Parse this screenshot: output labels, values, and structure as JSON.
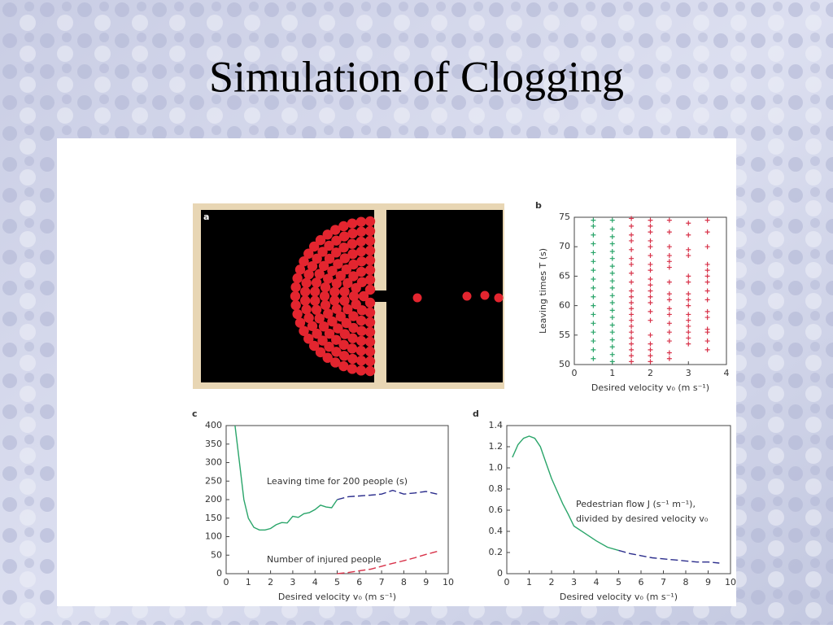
{
  "title": "Simulation of Clogging",
  "panel_a": {
    "label": "a"
  },
  "chart_data": [
    {
      "type": "scatter",
      "label": "b",
      "xlabel": "Desired velocity v₀ (m s⁻¹)",
      "ylabel": "Leaving times T (s)",
      "xlim": [
        0,
        4
      ],
      "xticks": [
        0,
        1,
        2,
        3,
        4
      ],
      "ylim": [
        50,
        75
      ],
      "yticks": [
        50,
        55,
        60,
        65,
        70,
        75
      ],
      "series": [
        {
          "color": "#2aa56a",
          "x": [
            0.5,
            0.5,
            0.5,
            0.5,
            0.5,
            0.5,
            0.5,
            0.5,
            0.5,
            0.5,
            0.5,
            0.5,
            0.5,
            0.5,
            0.5,
            0.5,
            0.5,
            1,
            1,
            1,
            1,
            1,
            1,
            1,
            1,
            1,
            1,
            1,
            1,
            1,
            1,
            1,
            1,
            1,
            1,
            1,
            1
          ],
          "y": [
            51,
            52.5,
            54,
            55.5,
            57,
            58.5,
            60,
            61.5,
            63,
            64.5,
            66,
            67.5,
            69,
            70.5,
            72,
            73.5,
            74.5,
            50.5,
            51.7,
            53,
            54.2,
            55.5,
            56.7,
            58,
            59.2,
            60.5,
            61.7,
            63,
            64.2,
            65.5,
            66.7,
            68,
            69.2,
            70.5,
            71.7,
            73,
            74.5
          ]
        },
        {
          "color": "#d8334a",
          "x": [
            1.5,
            1.5,
            1.5,
            1.5,
            1.5,
            1.5,
            1.5,
            1.5,
            1.5,
            1.5,
            1.5,
            1.5,
            1.5,
            1.5,
            1.5,
            1.5,
            1.5,
            1.5,
            1.5,
            1.5,
            1.5,
            1.5,
            2,
            2,
            2,
            2,
            2,
            2,
            2,
            2,
            2,
            2,
            2,
            2,
            2,
            2,
            2,
            2,
            2,
            2,
            2,
            2,
            2.5,
            2.5,
            2.5,
            2.5,
            2.5,
            2.5,
            2.5,
            2.5,
            2.5,
            2.5,
            2.5,
            2.5,
            2.5,
            2.5,
            2.5,
            2.5,
            3,
            3,
            3,
            3,
            3,
            3,
            3,
            3,
            3,
            3,
            3,
            3,
            3,
            3,
            3,
            3.5,
            3.5,
            3.5,
            3.5,
            3.5,
            3.5,
            3.5,
            3.5,
            3.5,
            3.5,
            3.5,
            3.5,
            3.5,
            3.5,
            3.5
          ],
          "y": [
            50.5,
            51.5,
            52.5,
            53.5,
            54.5,
            55.5,
            56.5,
            57.5,
            58.5,
            59.5,
            60.5,
            61.5,
            62.5,
            64,
            65.5,
            67,
            68,
            69.5,
            71,
            72,
            73.5,
            74.8,
            50.5,
            51.5,
            52.5,
            53.5,
            55,
            57.5,
            59,
            60.5,
            61.5,
            62.5,
            63.5,
            64.5,
            66,
            67,
            68.5,
            70,
            71,
            72.5,
            73.5,
            74.5,
            51,
            52,
            54,
            55.5,
            57,
            58.5,
            59.5,
            61,
            62,
            64,
            66.5,
            67.5,
            68.5,
            70,
            72.5,
            74.5,
            53.5,
            54.5,
            55.5,
            56.5,
            57.5,
            58.5,
            60,
            61,
            62,
            64,
            65,
            68.5,
            69.5,
            72,
            74,
            52.5,
            54,
            55.5,
            56,
            58,
            59,
            61,
            62.5,
            64,
            65,
            66,
            67,
            70,
            72.5,
            74.5
          ]
        }
      ]
    },
    {
      "type": "line",
      "label": "c",
      "xlabel": "Desired velocity v₀ (m s⁻¹)",
      "annotations": [
        "Leaving time for 200 people (s)",
        "Number of injured people"
      ],
      "xlim": [
        0,
        10
      ],
      "xticks": [
        0,
        1,
        2,
        3,
        4,
        5,
        6,
        7,
        8,
        9,
        10
      ],
      "ylim": [
        0,
        400
      ],
      "yticks": [
        0,
        50,
        100,
        150,
        200,
        250,
        300,
        350,
        400
      ],
      "x": [
        0.4,
        0.6,
        0.8,
        1,
        1.25,
        1.5,
        1.75,
        2,
        2.25,
        2.5,
        2.75,
        3,
        3.25,
        3.5,
        3.75,
        4,
        4.25,
        4.5,
        4.75,
        5,
        5.5,
        6,
        6.5,
        7,
        7.5,
        8,
        8.5,
        9,
        9.5
      ],
      "series": [
        {
          "color": "#2aa56a",
          "dash": false,
          "values": [
            400,
            300,
            200,
            150,
            125,
            118,
            118,
            122,
            132,
            138,
            137,
            155,
            152,
            162,
            165,
            173,
            185,
            180,
            178,
            200,
            null,
            null,
            null,
            null,
            null,
            null,
            null,
            null,
            null
          ]
        },
        {
          "color": "#2b2d8c",
          "dash": true,
          "values": [
            null,
            null,
            null,
            null,
            null,
            null,
            null,
            null,
            null,
            null,
            null,
            null,
            null,
            null,
            null,
            null,
            null,
            null,
            null,
            200,
            208,
            210,
            212,
            215,
            225,
            215,
            218,
            222,
            215
          ]
        },
        {
          "color": "#d8334a",
          "dash": true,
          "values": [
            null,
            null,
            null,
            null,
            null,
            null,
            null,
            null,
            null,
            null,
            null,
            null,
            null,
            null,
            null,
            null,
            null,
            null,
            null,
            0,
            3,
            8,
            12,
            20,
            28,
            35,
            43,
            52,
            60
          ]
        }
      ]
    },
    {
      "type": "line",
      "label": "d",
      "xlabel": "Desired velocity v₀ (m s⁻¹)",
      "annotations": [
        "Pedestrian flow J (s⁻¹ m⁻¹),",
        "divided by desired velocity v₀"
      ],
      "xlim": [
        0,
        10
      ],
      "xticks": [
        0,
        1,
        2,
        3,
        4,
        5,
        6,
        7,
        8,
        9,
        10
      ],
      "ylim": [
        0,
        1.4
      ],
      "yticks": [
        0,
        0.2,
        0.4,
        0.6,
        0.8,
        {
          "value": 1,
          "label": "1.0"
        },
        1.2,
        1.4
      ],
      "x": [
        0.25,
        0.5,
        0.75,
        1,
        1.25,
        1.5,
        1.75,
        2,
        2.25,
        2.5,
        2.75,
        3,
        3.5,
        4,
        4.5,
        5,
        5.5,
        6,
        6.5,
        7,
        7.5,
        8,
        8.5,
        9,
        9.5
      ],
      "series": [
        {
          "color": "#2aa56a",
          "dash": false,
          "values": [
            1.1,
            1.22,
            1.28,
            1.3,
            1.28,
            1.2,
            1.05,
            0.9,
            0.78,
            0.66,
            0.56,
            0.45,
            0.38,
            0.31,
            0.25,
            0.22,
            null,
            null,
            null,
            null,
            null,
            null,
            null,
            null,
            null
          ]
        },
        {
          "color": "#2b2d8c",
          "dash": true,
          "values": [
            null,
            null,
            null,
            null,
            null,
            null,
            null,
            null,
            null,
            null,
            null,
            null,
            null,
            null,
            null,
            0.22,
            0.19,
            0.17,
            0.15,
            0.14,
            0.13,
            0.12,
            0.11,
            0.11,
            0.1
          ]
        }
      ]
    }
  ]
}
